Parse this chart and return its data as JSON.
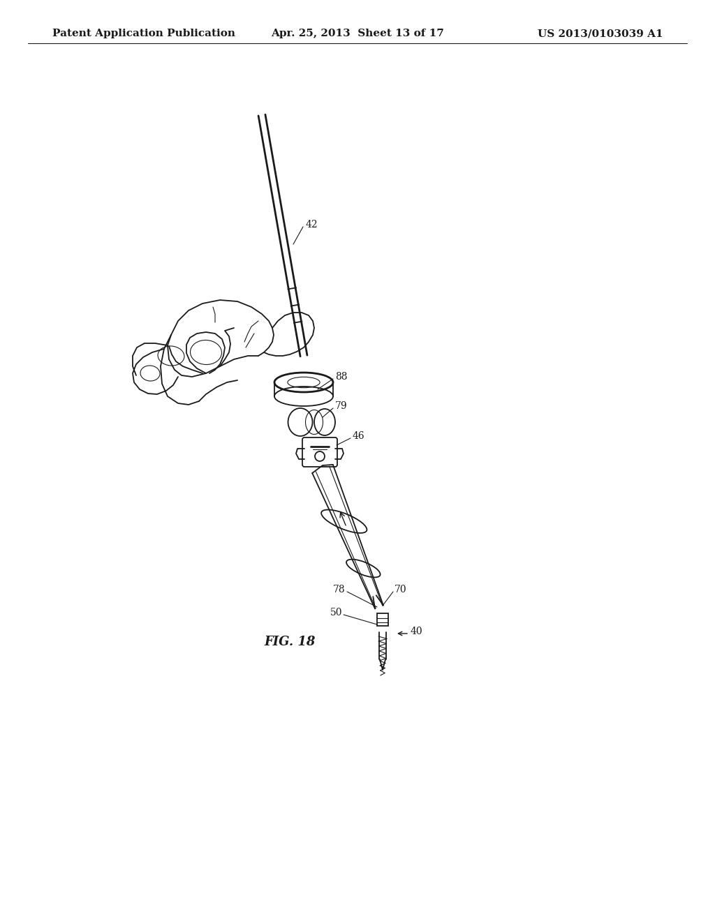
{
  "title_left": "Patent Application Publication",
  "title_center": "Apr. 25, 2013  Sheet 13 of 17",
  "title_right": "US 2013/0103039 A1",
  "fig_label": "FIG. 18",
  "background_color": "#ffffff",
  "line_color": "#1a1a1a",
  "text_color": "#1a1a1a",
  "header_fontsize": 11,
  "fig_label_fontsize": 13,
  "ref_fontsize": 10
}
